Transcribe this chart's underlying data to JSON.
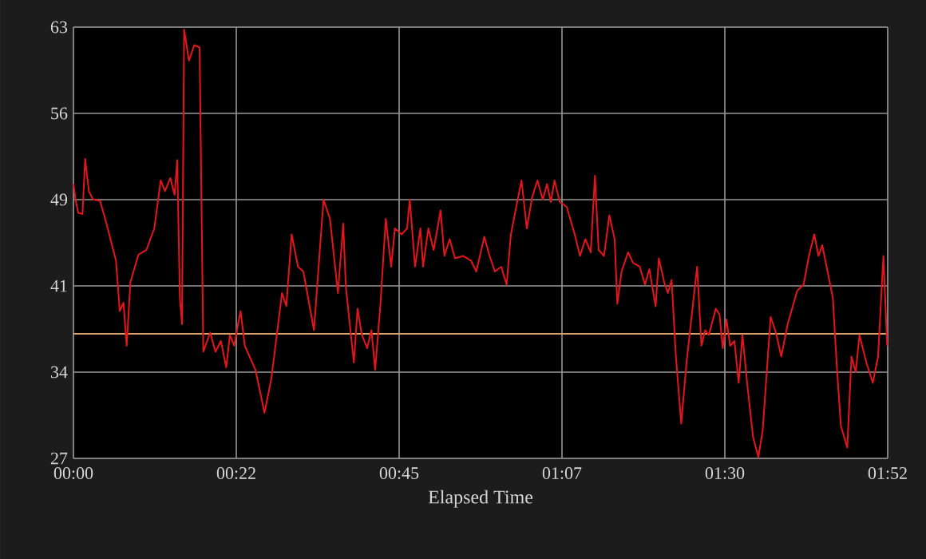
{
  "chart_data": {
    "type": "line",
    "xlabel": "Elapsed Time",
    "x": [
      0.0,
      0.29,
      0.66,
      1.24,
      1.61,
      2.12,
      2.71,
      3.66,
      4.54,
      5.85,
      6.37,
      6.88,
      7.32,
      7.83,
      8.93,
      10.03,
      11.12,
      12.0,
      12.59,
      13.32,
      13.91,
      14.27,
      14.64,
      14.93,
      15.22,
      15.88,
      16.62,
      17.35,
      17.86,
      18.81,
      19.54,
      20.28,
      21.01,
      21.52,
      22.1,
      22.98,
      23.57,
      25.03,
      26.28,
      27.23,
      28.69,
      29.28,
      30.01,
      30.89,
      31.62,
      33.08,
      34.4,
      35.28,
      36.38,
      37.11,
      37.47,
      38.57,
      39.08,
      39.67,
      40.4,
      40.99,
      41.5,
      42.23,
      42.96,
      43.7,
      44.21,
      45.16,
      45.89,
      46.26,
      46.99,
      47.72,
      48.09,
      48.82,
      49.55,
      50.5,
      51.02,
      51.75,
      52.48,
      53.58,
      54.68,
      55.41,
      56.51,
      57.24,
      57.97,
      58.85,
      59.58,
      60.17,
      61.04,
      61.63,
      62.36,
      63.09,
      63.83,
      64.56,
      65.14,
      65.66,
      66.17,
      66.9,
      67.85,
      68.95,
      69.68,
      70.41,
      71.15,
      71.73,
      72.24,
      72.98,
      73.71,
      74.44,
      74.81,
      75.4,
      76.28,
      77.01,
      77.89,
      78.62,
      79.21,
      80.08,
      80.52,
      81.26,
      81.77,
      82.28,
      82.87,
      83.6,
      84.33,
      85.06,
      85.79,
      86.38,
      86.89,
      87.4,
      88.36,
      88.87,
      89.31,
      89.82,
      90.33,
      90.92,
      91.5,
      92.02,
      92.75,
      93.48,
      94.21,
      94.8,
      95.46,
      95.9,
      96.63,
      97.36,
      98.24,
      99.56,
      100.43,
      101.17,
      101.9,
      102.48,
      103.0,
      103.73,
      104.46,
      104.97,
      105.56,
      106.44,
      107.02,
      107.61,
      108.12,
      109.07,
      109.95,
      110.68,
      111.41,
      111.93
    ],
    "series": [
      {
        "color": "#e8141b",
        "values": [
          49.9,
          48.6,
          47.5,
          47.4,
          52.0,
          49.3,
          48.6,
          48.5,
          46.6,
          43.5,
          39.3,
          40.0,
          36.4,
          41.7,
          44.0,
          44.4,
          46.2,
          50.2,
          49.3,
          50.4,
          49.0,
          51.9,
          40.4,
          38.2,
          62.8,
          60.2,
          61.5,
          61.3,
          35.9,
          37.5,
          35.9,
          36.8,
          34.6,
          37.3,
          36.4,
          39.3,
          36.4,
          34.4,
          30.8,
          33.7,
          40.8,
          39.7,
          45.7,
          43.0,
          42.6,
          37.7,
          48.6,
          47.0,
          40.8,
          46.6,
          41.3,
          35.0,
          39.5,
          37.3,
          36.2,
          37.7,
          34.4,
          39.9,
          47.0,
          43.0,
          46.2,
          45.7,
          46.2,
          48.6,
          43.0,
          46.2,
          43.0,
          46.2,
          44.4,
          47.7,
          43.9,
          45.3,
          43.7,
          43.9,
          43.5,
          42.6,
          45.5,
          43.9,
          42.6,
          43.0,
          41.5,
          45.7,
          48.4,
          50.2,
          46.2,
          48.8,
          50.2,
          48.6,
          49.9,
          48.4,
          50.2,
          48.4,
          48.0,
          45.7,
          43.9,
          45.3,
          44.2,
          50.6,
          44.4,
          43.9,
          47.3,
          45.3,
          39.9,
          42.6,
          44.2,
          43.3,
          43.0,
          41.5,
          42.8,
          39.7,
          43.7,
          41.7,
          40.8,
          41.9,
          35.5,
          29.9,
          35.0,
          39.0,
          43.0,
          36.4,
          37.7,
          37.3,
          39.5,
          39.0,
          36.2,
          38.6,
          36.4,
          36.8,
          33.3,
          37.3,
          32.8,
          28.8,
          27.1,
          29.3,
          35.0,
          38.8,
          37.5,
          35.5,
          38.2,
          41.0,
          41.5,
          43.9,
          45.7,
          43.9,
          44.8,
          42.6,
          40.4,
          35.0,
          29.7,
          27.9,
          35.5,
          34.2,
          37.3,
          35.0,
          33.3,
          35.5,
          43.9,
          36.4
        ]
      }
    ],
    "xlim": [
      0,
      112
    ],
    "xticks": [
      {
        "value": 0,
        "label": "00:00"
      },
      {
        "value": 22.4,
        "label": "00:22"
      },
      {
        "value": 44.8,
        "label": "00:45"
      },
      {
        "value": 67.2,
        "label": "01:07"
      },
      {
        "value": 89.6,
        "label": "01:30"
      },
      {
        "value": 112,
        "label": "01:52"
      }
    ],
    "ylim": [
      27,
      63
    ],
    "yticks": [
      27,
      {
        "value": 34.2,
        "label": "34"
      },
      {
        "value": 41.4,
        "label": "41"
      },
      {
        "value": 48.6,
        "label": "49"
      },
      {
        "value": 55.8,
        "label": "56"
      },
      63
    ],
    "ref_lines": [
      {
        "axis": "y",
        "value": 37.4,
        "color": "#d9a066"
      }
    ],
    "grid": true,
    "line_style": "solid",
    "marker": "none"
  }
}
